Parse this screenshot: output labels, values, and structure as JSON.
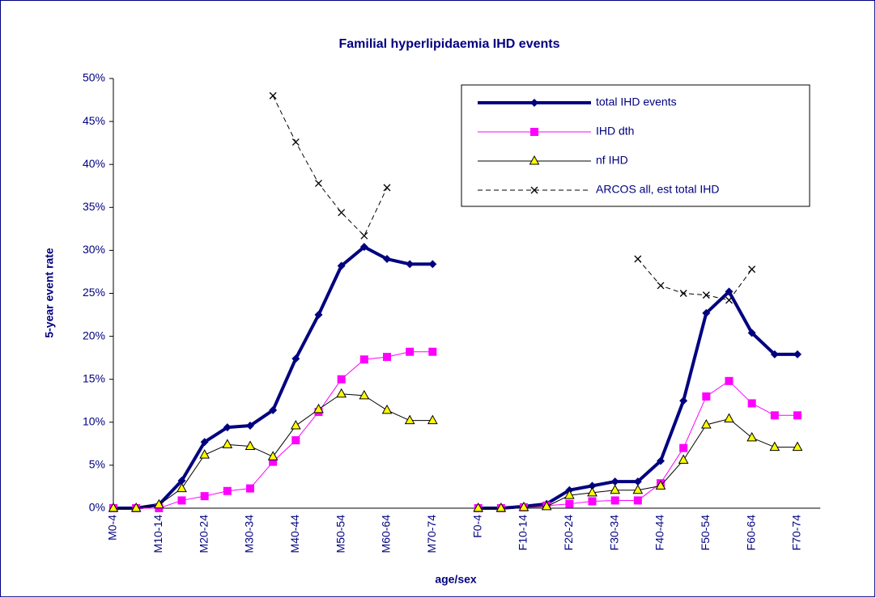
{
  "chart_data": {
    "type": "line",
    "title": "Familial hyperlipidaemia IHD events",
    "x_label": "age/sex",
    "y_label": "5-year event rate",
    "categories": [
      "M0-4",
      null,
      "M10-14",
      null,
      "M20-24",
      null,
      "M30-34",
      null,
      "M40-44",
      null,
      "M50-54",
      null,
      "M60-64",
      null,
      "M70-74",
      null,
      "F0-4",
      null,
      "F10-14",
      null,
      "F20-24",
      null,
      "F30-34",
      null,
      "F40-44",
      null,
      "F50-54",
      null,
      "F60-64",
      null,
      "F70-74"
    ],
    "ylim": [
      0,
      50
    ],
    "yticks": [
      {
        "value": 0,
        "label": "0%"
      },
      {
        "value": 5,
        "label": "5%"
      },
      {
        "value": 10,
        "label": "10%"
      },
      {
        "value": 15,
        "label": "15%"
      },
      {
        "value": 20,
        "label": "20%"
      },
      {
        "value": 25,
        "label": "25%"
      },
      {
        "value": 30,
        "label": "30%"
      },
      {
        "value": 35,
        "label": "35%"
      },
      {
        "value": 40,
        "label": "40%"
      },
      {
        "value": 45,
        "label": "45%"
      },
      {
        "value": 50,
        "label": "50%"
      }
    ],
    "legend": "upper right",
    "series": [
      {
        "name": "total IHD events",
        "color": "#000080",
        "marker": "diamond",
        "line_width": 4,
        "dashed": false,
        "values": [
          0,
          0,
          0.4,
          3.2,
          7.7,
          9.4,
          9.6,
          11.4,
          17.4,
          22.5,
          28.2,
          30.4,
          29.0,
          28.4,
          28.4,
          null,
          0,
          0,
          0.2,
          0.5,
          2.1,
          2.6,
          3.1,
          3.1,
          5.5,
          12.5,
          22.7,
          25.2,
          20.4,
          17.9,
          17.9
        ]
      },
      {
        "name": "IHD dth",
        "color": "#ff00ff",
        "marker": "square",
        "line_width": 1,
        "dashed": false,
        "values": [
          0,
          0,
          0,
          0.9,
          1.4,
          2.0,
          2.3,
          5.4,
          7.9,
          11.2,
          15.0,
          17.3,
          17.6,
          18.2,
          18.2,
          null,
          0,
          0,
          0.1,
          0.3,
          0.5,
          0.8,
          0.9,
          0.9,
          2.9,
          7.0,
          13.0,
          14.8,
          12.2,
          10.8,
          10.8
        ]
      },
      {
        "name": "nf IHD",
        "color": "#000000",
        "marker": "triangle",
        "line_width": 1,
        "dashed": false,
        "values": [
          0,
          0,
          0.4,
          2.3,
          6.2,
          7.4,
          7.2,
          6.0,
          9.6,
          11.5,
          13.3,
          13.1,
          11.4,
          10.2,
          10.2,
          null,
          0,
          0,
          0.1,
          0.2,
          1.5,
          1.8,
          2.1,
          2.1,
          2.6,
          5.6,
          9.7,
          10.4,
          8.2,
          7.1,
          7.1
        ]
      },
      {
        "name": "ARCOS all, est total IHD",
        "color": "#000000",
        "marker": "x",
        "line_width": 1,
        "dashed": true,
        "values": [
          null,
          null,
          null,
          null,
          null,
          null,
          null,
          48.0,
          42.6,
          37.8,
          34.4,
          31.7,
          37.3,
          null,
          null,
          null,
          null,
          null,
          null,
          null,
          null,
          null,
          null,
          29.0,
          25.9,
          25.0,
          24.8,
          24.2,
          27.8,
          null,
          null
        ]
      }
    ]
  }
}
